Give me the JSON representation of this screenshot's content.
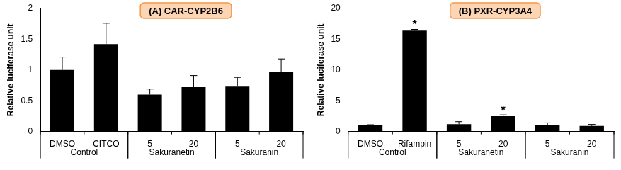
{
  "chart_data": [
    {
      "type": "bar",
      "title": "(A) CAR-CYP2B6",
      "ylabel": "Relative luciferase unit",
      "categories": [
        "DMSO",
        "CITCO",
        "5",
        "20",
        "5",
        "20"
      ],
      "category_groups": [
        "Control",
        "Control",
        "Sakuranetin",
        "Sakuranetin",
        "Sakuranin",
        "Sakuranin"
      ],
      "values": [
        1.0,
        1.42,
        0.6,
        0.72,
        0.73,
        0.97
      ],
      "errors": [
        0.21,
        0.34,
        0.09,
        0.19,
        0.15,
        0.21
      ],
      "annotations": [
        null,
        null,
        null,
        null,
        null,
        null
      ],
      "color": "#000000",
      "ylim": [
        0,
        2
      ],
      "yticks": [
        0,
        0.5,
        1,
        1.5,
        2
      ],
      "grid": false
    },
    {
      "type": "bar",
      "title": "(B) PXR-CYP3A4",
      "ylabel": "Relative luciferase unit",
      "categories": [
        "DMSO",
        "Rifampin",
        "5",
        "20",
        "5",
        "20"
      ],
      "category_groups": [
        "Control",
        "Control",
        "Sakuranetin",
        "Sakuranetin",
        "Sakuranin",
        "Sakuranin"
      ],
      "values": [
        1.0,
        16.4,
        1.2,
        2.5,
        1.1,
        0.9
      ],
      "errors": [
        0.1,
        0.2,
        0.4,
        0.2,
        0.3,
        0.25
      ],
      "annotations": [
        null,
        "*",
        null,
        "*",
        null,
        null
      ],
      "color": "#000000",
      "ylim": [
        0,
        20
      ],
      "yticks": [
        0,
        5,
        10,
        15,
        20
      ],
      "grid": false
    }
  ]
}
